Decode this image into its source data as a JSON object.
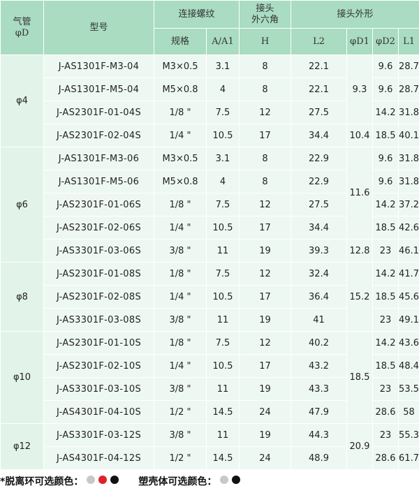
{
  "headers": {
    "pipe": "气管\nφD",
    "model": "型号",
    "thread_group": "连接螺纹",
    "hex_group": "接头\n外六角",
    "shape_group": "接头外形",
    "spec": "规格",
    "a": "A/A1",
    "h": "H",
    "l2": "L2",
    "d1": "φD1",
    "d2": "φD2",
    "l1": "L1"
  },
  "groups": [
    {
      "pipe": "φ4",
      "rows": [
        {
          "model": "J-AS1301F-M3-04",
          "spec": "M3×0.5",
          "a": "3.1",
          "h": "8",
          "l2": "22.1",
          "d2": "9.6",
          "l1": "28.7"
        },
        {
          "model": "J-AS1301F-M5-04",
          "spec": "M5×0.8",
          "a": "4",
          "h": "8",
          "l2": "22.1",
          "d2": "9.6",
          "l1": "28.7"
        },
        {
          "model": "J-AS2301F-01-04S",
          "spec": "1/8 \"",
          "a": "7.5",
          "h": "12",
          "l2": "27.5",
          "d2": "14.2",
          "l1": "31.8"
        },
        {
          "model": "J-AS2301F-02-04S",
          "spec": "1/4 \"",
          "a": "10.5",
          "h": "17",
          "l2": "34.4",
          "d2": "18.5",
          "l1": "40.1"
        }
      ]
    },
    {
      "pipe": "φ6",
      "rows": [
        {
          "model": "J-AS1301F-M3-06",
          "spec": "M3×0.5",
          "a": "3.1",
          "h": "8",
          "l2": "22.9",
          "d2": "9.6",
          "l1": "31.8"
        },
        {
          "model": "J-AS1301F-M5-06",
          "spec": "M5×0.8",
          "a": "4",
          "h": "8",
          "l2": "22.9",
          "d2": "9.6",
          "l1": "31.8"
        },
        {
          "model": "J-AS2301F-01-06S",
          "spec": "1/8 \"",
          "a": "7.5",
          "h": "12",
          "l2": "27.5",
          "d2": "14.2",
          "l1": "37.2"
        },
        {
          "model": "J-AS2301F-02-06S",
          "spec": "1/4 \"",
          "a": "10.5",
          "h": "17",
          "l2": "34.4",
          "d2": "18.5",
          "l1": "42.6"
        },
        {
          "model": "J-AS3301F-03-06S",
          "spec": "3/8 \"",
          "a": "11",
          "h": "19",
          "l2": "39.3",
          "d2": "23",
          "l1": "46.1"
        }
      ]
    },
    {
      "pipe": "φ8",
      "rows": [
        {
          "model": "J-AS2301F-01-08S",
          "spec": "1/8 \"",
          "a": "7.5",
          "h": "12",
          "l2": "32.4",
          "d2": "14.2",
          "l1": "41.7"
        },
        {
          "model": "J-AS2301F-02-08S",
          "spec": "1/4 \"",
          "a": "10.5",
          "h": "17",
          "l2": "36.4",
          "d2": "18.5",
          "l1": "45.6"
        },
        {
          "model": "J-AS3301F-03-08S",
          "spec": "3/8 \"",
          "a": "11",
          "h": "19",
          "l2": "41",
          "d2": "23",
          "l1": "49.1"
        }
      ]
    },
    {
      "pipe": "φ10",
      "rows": [
        {
          "model": "J-AS2301F-01-10S",
          "spec": "1/8 \"",
          "a": "7.5",
          "h": "12",
          "l2": "40.2",
          "d2": "14.2",
          "l1": "43.6"
        },
        {
          "model": "J-AS2301F-02-10S",
          "spec": "1/4 \"",
          "a": "10.5",
          "h": "17",
          "l2": "43.2",
          "d2": "18.5",
          "l1": "48.4"
        },
        {
          "model": "J-AS3301F-03-10S",
          "spec": "3/8 \"",
          "a": "11",
          "h": "19",
          "l2": "43.3",
          "d2": "23",
          "l1": "53.5"
        },
        {
          "model": "J-AS4301F-04-10S",
          "spec": "1/2 \"",
          "a": "14.5",
          "h": "24",
          "l2": "47.9",
          "d2": "28.6",
          "l1": "58"
        }
      ]
    },
    {
      "pipe": "φ12",
      "rows": [
        {
          "model": "J-AS3301F-03-12S",
          "spec": "3/8 \"",
          "a": "11",
          "h": "19",
          "l2": "44.3",
          "d2": "23",
          "l1": "55.3"
        },
        {
          "model": "J-AS4301F-04-12S",
          "spec": "1/2 \"",
          "a": "14.5",
          "h": "24",
          "l2": "48.9",
          "d2": "28.6",
          "l1": "61.7"
        }
      ]
    }
  ],
  "d1_values": [
    {
      "value": "9.3",
      "rows": 3
    },
    {
      "value": "10.4",
      "rows": 1
    },
    {
      "value": "11.6",
      "rows": 4
    },
    {
      "value": "12.8",
      "rows": 1
    },
    {
      "value": "15.2",
      "rows": 3
    },
    {
      "value": "18.5",
      "rows": 4
    },
    {
      "value": "20.9",
      "rows": 2
    }
  ],
  "footer": {
    "ring_label": "*脱离环可选颜色：",
    "ring_colors": [
      "#c8c8c8",
      "#e0202a",
      "#111111"
    ],
    "body_label": "塑壳体可选颜色：",
    "body_colors": [
      "#c8c8c8",
      "#111111"
    ]
  },
  "colors": {
    "header_bg": "#a9dcc1",
    "pipe_cell_bg": "#e2f4ea",
    "body_bg": "#eef8f2"
  }
}
